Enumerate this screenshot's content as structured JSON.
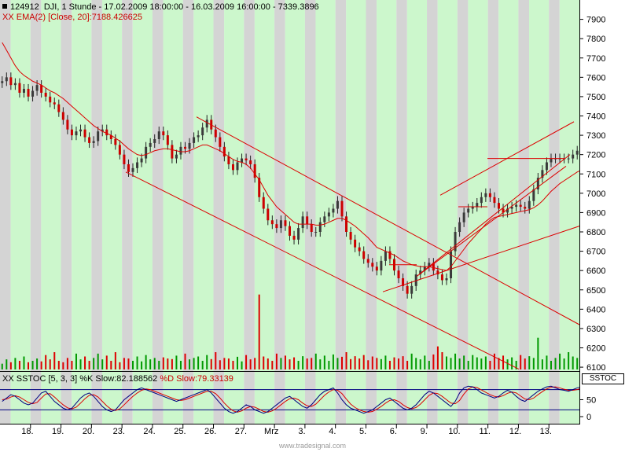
{
  "header": {
    "symbol": "124912",
    "title": "DJI, 1 Stunde - 17.02.2009 18:00:00 - 16.03.2009 16:00:00 - 7339.3896",
    "ema_label": "XX EMA(2) [Close, 20]:7188.426625"
  },
  "oscillator": {
    "label_k": "XX SSTOC [5, 3, 3] %K Slow:82.188562",
    "label_d": "%D Slow:79.33139",
    "panel_label": "SSTOC",
    "ytick_labels": [
      "50",
      "0"
    ]
  },
  "watermark": "www.tradesignal.com",
  "colors": {
    "band_gray": "#d4d4d4",
    "band_green": "#ccf7cc",
    "up_candle": "#3a3a3a",
    "down_candle": "#cc0000",
    "ema": "#dd0000",
    "trendline": "#dd0000",
    "volume_up": "#009900",
    "volume_down": "#dd0000",
    "stoch_k": "#000080",
    "stoch_d": "#dd0000"
  },
  "chart_data": {
    "type": "candlestick",
    "ylim": [
      6080,
      8000
    ],
    "yticks": [
      6100,
      6200,
      6300,
      6400,
      6500,
      6600,
      6700,
      6800,
      6900,
      7000,
      7100,
      7200,
      7300,
      7400,
      7500,
      7600,
      7700,
      7800,
      7900
    ],
    "x_labels": [
      "18.",
      "19.",
      "20.",
      "23.",
      "24.",
      "25.",
      "26.",
      "27.",
      "Mrz",
      "3.",
      "4.",
      "5.",
      "6.",
      "9.",
      "10.",
      "11.",
      "12.",
      "13."
    ],
    "sessions": 19,
    "bars_per_session": 7,
    "closes": [
      7580,
      7600,
      7560,
      7570,
      7520,
      7540,
      7500,
      7530,
      7560,
      7520,
      7500,
      7470,
      7460,
      7420,
      7380,
      7330,
      7300,
      7320,
      7330,
      7290,
      7260,
      7270,
      7320,
      7330,
      7300,
      7280,
      7250,
      7200,
      7150,
      7110,
      7130,
      7160,
      7180,
      7240,
      7260,
      7280,
      7320,
      7300,
      7250,
      7180,
      7200,
      7240,
      7230,
      7260,
      7290,
      7300,
      7340,
      7380,
      7330,
      7290,
      7240,
      7190,
      7150,
      7120,
      7160,
      7180,
      7170,
      7150,
      7080,
      6980,
      6920,
      6860,
      6840,
      6820,
      6860,
      6830,
      6780,
      6760,
      6820,
      6880,
      6840,
      6800,
      6800,
      6850,
      6880,
      6900,
      6920,
      6960,
      6880,
      6800,
      6760,
      6720,
      6700,
      6660,
      6640,
      6620,
      6600,
      6650,
      6700,
      6660,
      6600,
      6560,
      6520,
      6480,
      6520,
      6580,
      6600,
      6620,
      6640,
      6600,
      6580,
      6550,
      6560,
      6700,
      6800,
      6850,
      6900,
      6920,
      6930,
      6950,
      6980,
      7000,
      6980,
      6950,
      6920,
      6900,
      6920,
      6930,
      6940,
      6930,
      6920,
      6960,
      7020,
      7080,
      7120,
      7160,
      7180,
      7180,
      7180,
      7180,
      7180,
      7200,
      7220,
      7180,
      7150,
      7140,
      7160,
      7180,
      7200,
      7210,
      7220,
      7240,
      7300,
      7339
    ],
    "ema": [
      7780,
      7740,
      7700,
      7660,
      7630,
      7610,
      7595,
      7580,
      7570,
      7560,
      7545,
      7530,
      7520,
      7505,
      7490,
      7470,
      7450,
      7430,
      7410,
      7390,
      7370,
      7350,
      7335,
      7320,
      7310,
      7300,
      7285,
      7270,
      7250,
      7230,
      7215,
      7200,
      7195,
      7200,
      7210,
      7220,
      7225,
      7230,
      7230,
      7225,
      7220,
      7215,
      7215,
      7220,
      7230,
      7240,
      7250,
      7250,
      7240,
      7230,
      7220,
      7205,
      7190,
      7175,
      7165,
      7160,
      7150,
      7130,
      7100,
      7070,
      7030,
      6990,
      6960,
      6930,
      6910,
      6890,
      6870,
      6850,
      6840,
      6840,
      6840,
      6840,
      6835,
      6835,
      6840,
      6850,
      6860,
      6870,
      6870,
      6860,
      6845,
      6830,
      6810,
      6790,
      6770,
      6745,
      6720,
      6710,
      6700,
      6690,
      6680,
      6665,
      6650,
      6640,
      6630,
      6625,
      6620,
      6620,
      6620,
      6615,
      6610,
      6605,
      6600,
      6620,
      6650,
      6680,
      6710,
      6740,
      6765,
      6790,
      6815,
      6840,
      6860,
      6875,
      6880,
      6885,
      6890,
      6895,
      6900,
      6905,
      6910,
      6915,
      6925,
      6940,
      6960,
      6985,
      7010,
      7030,
      7050,
      7065,
      7080,
      7095,
      7110,
      7120,
      7125,
      7130,
      7135,
      7140,
      7145,
      7150,
      7160,
      7170,
      7180,
      7190
    ],
    "volumes": [
      20,
      35,
      25,
      40,
      30,
      45,
      25,
      30,
      38,
      28,
      50,
      35,
      60,
      30,
      25,
      40,
      30,
      55,
      35,
      45,
      30,
      40,
      55,
      35,
      48,
      30,
      60,
      25,
      40,
      38,
      30,
      45,
      28,
      50,
      35,
      40,
      30,
      42,
      38,
      36,
      48,
      30,
      55,
      35,
      40,
      45,
      30,
      50,
      36,
      60,
      32,
      40,
      38,
      30,
      44,
      28,
      50,
      35,
      40,
      260,
      45,
      38,
      30,
      55,
      40,
      48,
      35,
      42,
      30,
      46,
      38,
      40,
      55,
      35,
      48,
      30,
      52,
      40,
      44,
      60,
      36,
      46,
      38,
      50,
      32,
      45,
      40,
      36,
      48,
      30,
      42,
      38,
      46,
      30,
      55,
      40,
      35,
      48,
      30,
      52,
      80,
      60,
      45,
      40,
      55,
      38,
      48,
      30,
      50,
      42,
      38,
      45,
      30,
      55,
      40,
      48,
      35,
      42,
      30,
      50,
      38,
      46,
      40,
      110,
      35,
      48,
      30,
      40,
      55,
      38,
      60,
      45,
      40,
      50,
      30,
      220,
      40,
      44,
      50,
      30,
      55,
      40,
      45,
      36
    ],
    "stoch_k": [
      45,
      55,
      65,
      60,
      50,
      40,
      35,
      40,
      55,
      70,
      75,
      60,
      45,
      35,
      25,
      20,
      25,
      40,
      55,
      65,
      70,
      60,
      45,
      30,
      20,
      15,
      20,
      35,
      50,
      60,
      70,
      80,
      85,
      80,
      75,
      70,
      65,
      60,
      55,
      50,
      45,
      50,
      55,
      60,
      65,
      70,
      75,
      80,
      70,
      55,
      40,
      25,
      15,
      10,
      15,
      25,
      35,
      30,
      20,
      15,
      10,
      15,
      25,
      35,
      45,
      55,
      60,
      50,
      40,
      30,
      25,
      35,
      50,
      65,
      75,
      80,
      85,
      70,
      50,
      35,
      25,
      20,
      15,
      10,
      15,
      20,
      30,
      40,
      50,
      55,
      45,
      35,
      25,
      20,
      25,
      35,
      50,
      65,
      75,
      70,
      60,
      50,
      40,
      30,
      45,
      70,
      85,
      90,
      88,
      80,
      70,
      65,
      60,
      55,
      60,
      70,
      78,
      72,
      60,
      50,
      45,
      55,
      65,
      75,
      82,
      88,
      90,
      85,
      80,
      78,
      75,
      80,
      85,
      88,
      80,
      60,
      45,
      40,
      50,
      65,
      75,
      80,
      82,
      78,
      82
    ],
    "stoch_d": [
      50,
      52,
      58,
      62,
      58,
      50,
      42,
      38,
      42,
      55,
      67,
      68,
      58,
      46,
      35,
      26,
      23,
      28,
      40,
      53,
      63,
      65,
      58,
      45,
      32,
      22,
      18,
      23,
      35,
      48,
      60,
      70,
      78,
      82,
      80,
      75,
      70,
      65,
      60,
      55,
      50,
      48,
      50,
      55,
      60,
      65,
      70,
      75,
      75,
      68,
      55,
      40,
      27,
      17,
      13,
      17,
      25,
      30,
      28,
      22,
      15,
      13,
      17,
      25,
      35,
      45,
      53,
      55,
      50,
      40,
      32,
      30,
      37,
      50,
      63,
      73,
      80,
      78,
      68,
      52,
      37,
      27,
      20,
      15,
      13,
      15,
      22,
      30,
      40,
      48,
      50,
      45,
      35,
      27,
      23,
      27,
      37,
      50,
      63,
      70,
      68,
      60,
      50,
      40,
      38,
      48,
      67,
      82,
      88,
      86,
      79,
      72,
      65,
      60,
      58,
      62,
      69,
      73,
      70,
      61,
      52,
      50,
      55,
      65,
      74,
      82,
      87,
      88,
      85,
      81,
      78,
      78,
      80,
      84,
      84,
      76,
      62,
      48,
      45,
      52,
      63,
      73,
      79,
      80,
      79
    ]
  }
}
